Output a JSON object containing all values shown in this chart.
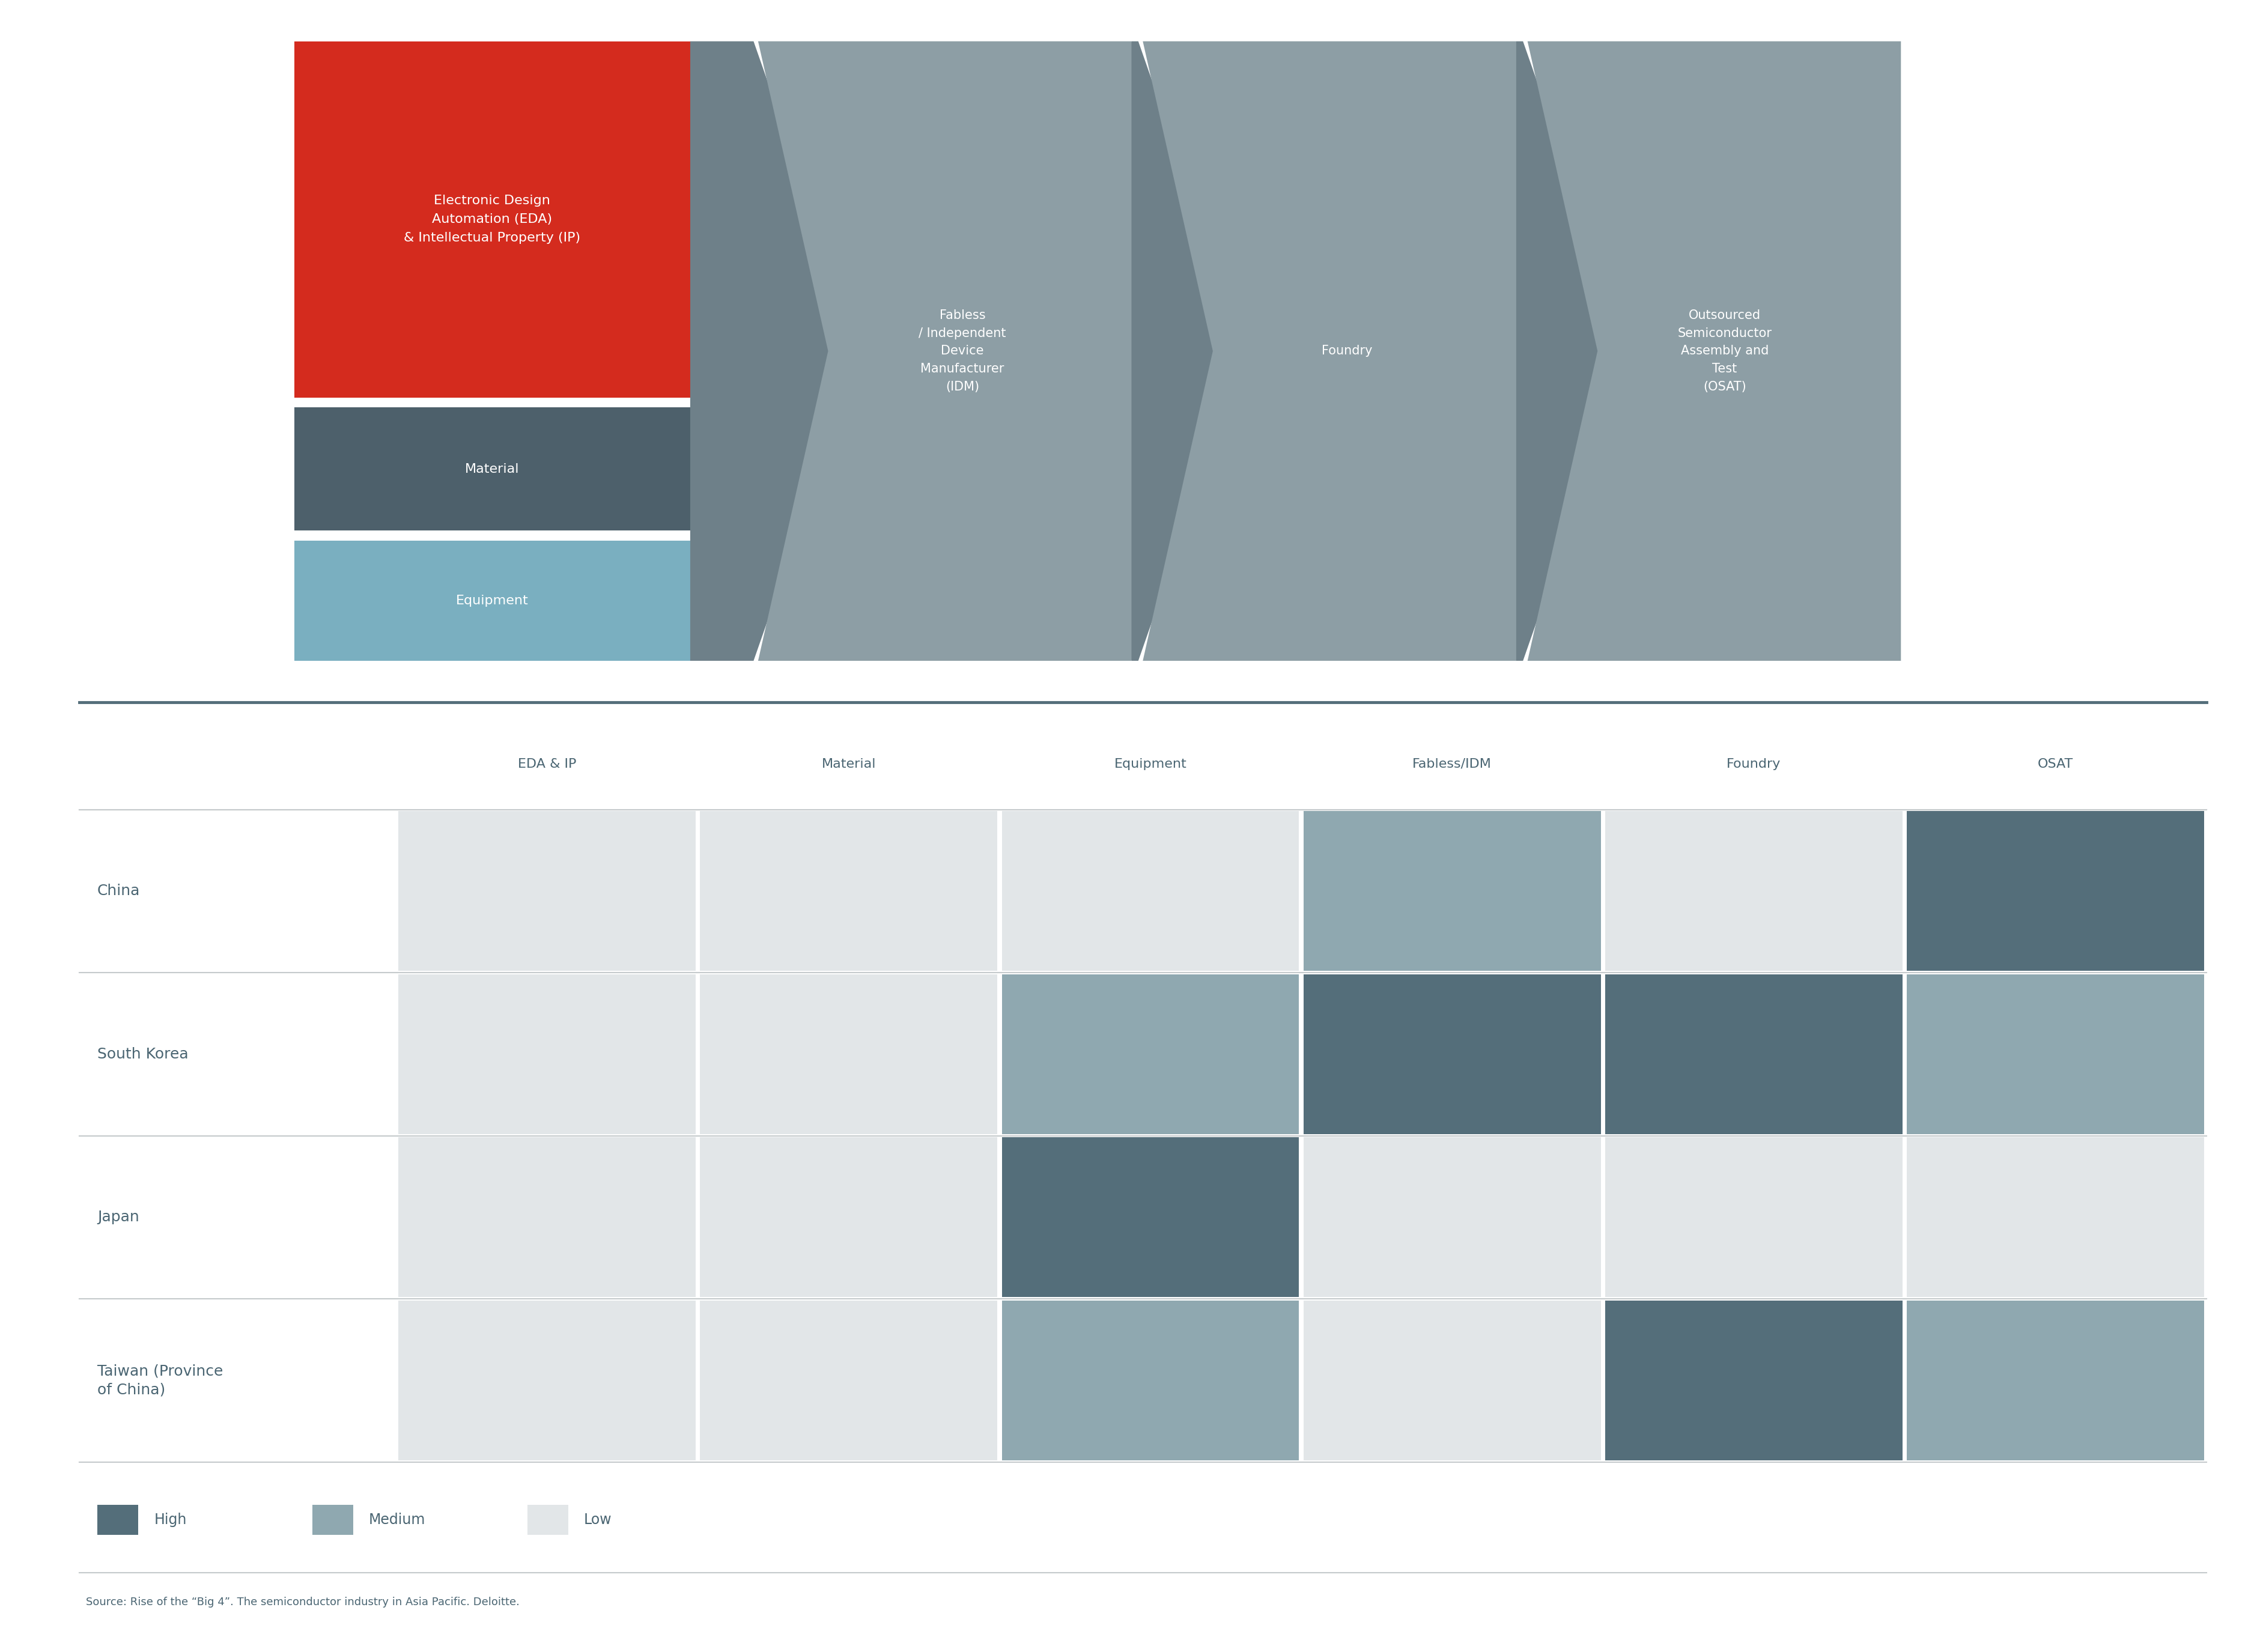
{
  "fig_width": 37.67,
  "fig_height": 27.5,
  "bg_color": "#ffffff",
  "eda_label": "Electronic Design\nAutomation (EDA)\n& Intellectual Property (IP)",
  "eda_color": "#D42B1E",
  "material_label": "Material",
  "material_color": "#4d606b",
  "equipment_label": "Equipment",
  "equipment_color": "#7aafc0",
  "flow_boxes": [
    {
      "label": "Fabless\n/ Independent\nDevice\nManufacturer\n(IDM)",
      "color": "#8d9ea5"
    },
    {
      "label": "Foundry",
      "color": "#8d9ea5"
    },
    {
      "label": "Outsourced\nSemiconductor\nAssembly and\nTest\n(OSAT)",
      "color": "#8d9ea5"
    }
  ],
  "arrow_color": "#6e8089",
  "columns": [
    "EDA & IP",
    "Material",
    "Equipment",
    "Fabless/IDM",
    "Foundry",
    "OSAT"
  ],
  "rows": [
    "China",
    "South Korea",
    "Japan",
    "Taiwan (Province\nof China)"
  ],
  "heat_colors": {
    "high": "#546e7a",
    "medium": "#8fa8b0",
    "low": "#e2e6e8"
  },
  "table_data": [
    [
      "low",
      "low",
      "low",
      "medium",
      "low",
      "high"
    ],
    [
      "low",
      "low",
      "medium",
      "high",
      "high",
      "medium"
    ],
    [
      "low",
      "low",
      "high",
      "low",
      "low",
      "low"
    ],
    [
      "low",
      "low",
      "medium",
      "low",
      "high",
      "medium"
    ]
  ],
  "source_text": "Source: Rise of the “Big 4”. The semiconductor industry in Asia Pacific. Deloitte.",
  "divider_color": "#546e7a",
  "text_color": "#4a6572",
  "line_color": "#c5cacc",
  "legend": [
    {
      "label": "High",
      "color": "#546e7a"
    },
    {
      "label": "Medium",
      "color": "#8fa8b0"
    },
    {
      "label": "Low",
      "color": "#e2e6e8"
    }
  ]
}
